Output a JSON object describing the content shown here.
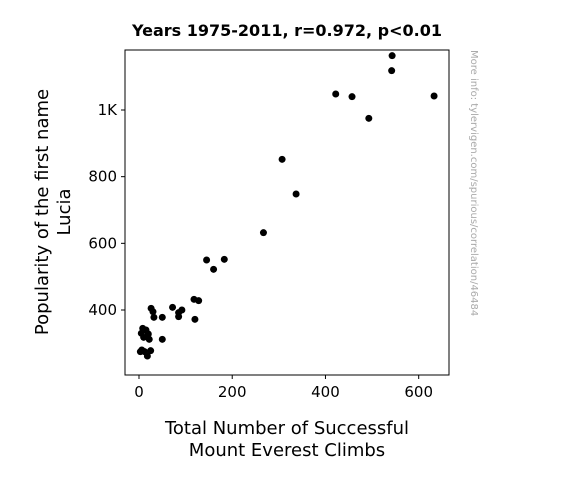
{
  "chart_data": {
    "type": "scatter",
    "title": "Years 1975-2011, r=0.972, p<0.01",
    "xlabel": [
      "Total Number of Successful",
      "Mount Everest Climbs"
    ],
    "ylabel": [
      "Popularity of the first name",
      "Lucia"
    ],
    "xlim": [
      -30,
      665
    ],
    "ylim": [
      205,
      1180
    ],
    "xticks": [
      {
        "value": 0,
        "label": "0"
      },
      {
        "value": 200,
        "label": "200"
      },
      {
        "value": 400,
        "label": "400"
      },
      {
        "value": 600,
        "label": "600"
      }
    ],
    "yticks": [
      {
        "value": 400,
        "label": "400"
      },
      {
        "value": 600,
        "label": "600"
      },
      {
        "value": 800,
        "label": "800"
      },
      {
        "value": 1000,
        "label": "1K"
      },
      {
        "value": 1200,
        "label": "1K"
      }
    ],
    "grid": false,
    "marker_color": "#000000",
    "watermark": "More info: tylervigen.com/spurious/correlation/46484",
    "points": [
      {
        "x": 5,
        "y": 330
      },
      {
        "x": 8,
        "y": 345
      },
      {
        "x": 10,
        "y": 318
      },
      {
        "x": 15,
        "y": 340
      },
      {
        "x": 20,
        "y": 328
      },
      {
        "x": 22,
        "y": 312
      },
      {
        "x": 3,
        "y": 275
      },
      {
        "x": 6,
        "y": 280
      },
      {
        "x": 12,
        "y": 275
      },
      {
        "x": 18,
        "y": 262
      },
      {
        "x": 25,
        "y": 278
      },
      {
        "x": 26,
        "y": 405
      },
      {
        "x": 30,
        "y": 395
      },
      {
        "x": 32,
        "y": 378
      },
      {
        "x": 50,
        "y": 378
      },
      {
        "x": 50,
        "y": 312
      },
      {
        "x": 72,
        "y": 408
      },
      {
        "x": 85,
        "y": 380
      },
      {
        "x": 85,
        "y": 392
      },
      {
        "x": 92,
        "y": 400
      },
      {
        "x": 118,
        "y": 432
      },
      {
        "x": 120,
        "y": 372
      },
      {
        "x": 128,
        "y": 428
      },
      {
        "x": 145,
        "y": 550
      },
      {
        "x": 160,
        "y": 522
      },
      {
        "x": 183,
        "y": 552
      },
      {
        "x": 267,
        "y": 632
      },
      {
        "x": 307,
        "y": 852
      },
      {
        "x": 337,
        "y": 748
      },
      {
        "x": 422,
        "y": 1048
      },
      {
        "x": 457,
        "y": 1040
      },
      {
        "x": 493,
        "y": 975
      },
      {
        "x": 542,
        "y": 1118
      },
      {
        "x": 543,
        "y": 1163
      },
      {
        "x": 633,
        "y": 1042
      }
    ]
  }
}
